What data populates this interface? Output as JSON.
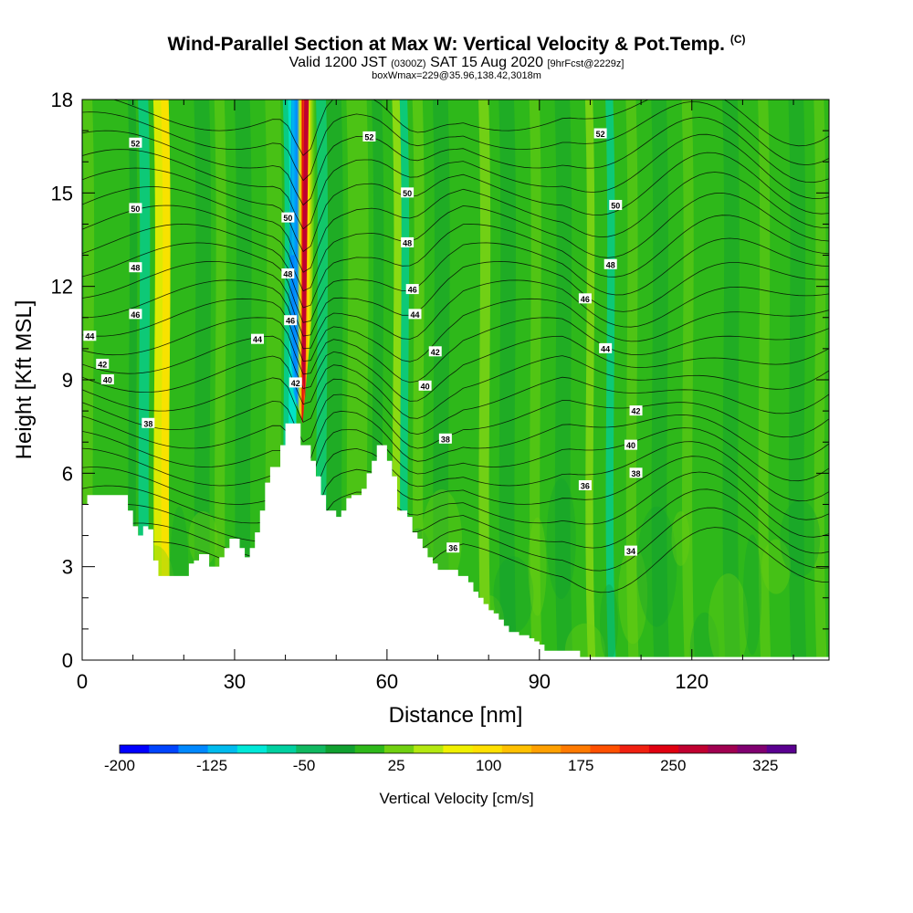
{
  "titles": {
    "main": "Wind-Parallel Section at Max W: Vertical Velocity & Pot.Temp.",
    "main_suffix": "(C)",
    "valid_a": "Valid 1200 JST",
    "valid_small1": "(0300Z)",
    "valid_b": "SAT 15 Aug 2020",
    "valid_small2": "[9hrFcst@2229z]",
    "subline": "boxWmax=229@35.96,138.42,3018m"
  },
  "chart_data": {
    "type": "heatmap",
    "xlabel": "Distance [nm]",
    "ylabel": "Height [Kft MSL]",
    "xlim": [
      0,
      147
    ],
    "ylim": [
      0,
      18
    ],
    "x_ticks": [
      0,
      30,
      60,
      90,
      120
    ],
    "y_ticks": [
      0,
      3,
      6,
      9,
      12,
      15,
      18
    ],
    "colorbar": {
      "label": "Vertical Velocity [cm/s]",
      "tick_labels": [
        -200,
        -125,
        -50,
        25,
        100,
        175,
        250,
        325
      ],
      "min": -200,
      "max": 350,
      "colors": [
        "#0000ff",
        "#0044ff",
        "#0088ff",
        "#00bbee",
        "#00e8d8",
        "#00d0a0",
        "#10b860",
        "#10a030",
        "#2eb81a",
        "#70d010",
        "#b4e810",
        "#f0f000",
        "#ffe000",
        "#ffc000",
        "#ffa000",
        "#ff7a00",
        "#ff5000",
        "#f02010",
        "#e00010",
        "#c00030",
        "#a00050",
        "#800070",
        "#5a0090"
      ]
    },
    "terrain_profile": {
      "x": [
        0,
        1,
        3.5,
        4,
        7,
        9,
        10,
        11,
        12,
        13,
        14,
        15,
        16,
        17,
        18,
        20,
        21,
        22,
        23,
        24,
        25,
        26,
        27,
        28,
        29,
        30,
        31,
        32,
        33,
        34,
        35,
        36,
        37,
        38,
        39,
        40,
        41,
        42,
        43,
        44,
        45,
        46,
        47,
        48,
        49,
        50,
        51,
        52,
        53,
        54,
        55,
        56,
        57,
        58,
        59,
        60,
        61,
        62,
        63,
        64,
        65,
        66,
        67,
        68,
        69,
        70,
        71,
        72,
        73,
        74,
        75,
        76,
        77,
        78,
        79,
        80,
        81,
        82,
        83,
        84,
        85,
        86,
        87,
        88,
        89,
        90,
        91,
        92,
        93,
        94,
        95,
        96,
        97,
        98,
        99,
        100,
        147
      ],
      "y": [
        5.0,
        5.3,
        5.3,
        5.3,
        5.3,
        4.8,
        4.3,
        4.0,
        4.3,
        4.2,
        3.2,
        2.7,
        2.7,
        2.7,
        2.7,
        2.7,
        3.1,
        3.2,
        3.4,
        3.4,
        3.0,
        3.0,
        3.3,
        3.6,
        3.9,
        3.9,
        3.6,
        3.3,
        3.6,
        4.1,
        4.8,
        5.7,
        6.2,
        6.2,
        6.9,
        7.6,
        7.6,
        7.6,
        6.9,
        6.9,
        6.4,
        5.9,
        5.3,
        4.8,
        4.8,
        4.6,
        4.8,
        5.2,
        5.3,
        5.3,
        5.5,
        6.0,
        6.4,
        6.9,
        6.9,
        6.4,
        5.9,
        4.8,
        4.8,
        4.6,
        4.1,
        3.9,
        3.6,
        3.3,
        3.1,
        2.9,
        2.9,
        2.9,
        2.9,
        2.7,
        2.7,
        2.5,
        2.2,
        2.0,
        1.8,
        1.6,
        1.5,
        1.3,
        1.1,
        0.9,
        0.9,
        0.8,
        0.8,
        0.7,
        0.6,
        0.5,
        0.3,
        0.3,
        0.3,
        0.3,
        0.3,
        0.3,
        0.3,
        0.1,
        0.1,
        0.1,
        0.1
      ],
      "color": "#ffffff"
    },
    "contour_labels": [
      {
        "text": "52",
        "x": 10.5,
        "y": 16.6
      },
      {
        "text": "50",
        "x": 10.5,
        "y": 14.5
      },
      {
        "text": "48",
        "x": 10.5,
        "y": 12.6
      },
      {
        "text": "46",
        "x": 10.5,
        "y": 11.1
      },
      {
        "text": "44",
        "x": 1.5,
        "y": 10.4
      },
      {
        "text": "42",
        "x": 4.0,
        "y": 9.5
      },
      {
        "text": "40",
        "x": 5.0,
        "y": 9.0
      },
      {
        "text": "38",
        "x": 13.0,
        "y": 7.6
      },
      {
        "text": "44",
        "x": 34.5,
        "y": 10.3
      },
      {
        "text": "50",
        "x": 40.5,
        "y": 14.2
      },
      {
        "text": "48",
        "x": 40.5,
        "y": 12.4
      },
      {
        "text": "46",
        "x": 41.0,
        "y": 10.9
      },
      {
        "text": "42",
        "x": 42.0,
        "y": 8.9
      },
      {
        "text": "52",
        "x": 56.5,
        "y": 16.8
      },
      {
        "text": "50",
        "x": 64.0,
        "y": 15.0
      },
      {
        "text": "48",
        "x": 64.0,
        "y": 13.4
      },
      {
        "text": "46",
        "x": 65.0,
        "y": 11.9
      },
      {
        "text": "44",
        "x": 65.5,
        "y": 11.1
      },
      {
        "text": "42",
        "x": 69.5,
        "y": 9.9
      },
      {
        "text": "40",
        "x": 67.5,
        "y": 8.8
      },
      {
        "text": "38",
        "x": 71.5,
        "y": 7.1
      },
      {
        "text": "36",
        "x": 73.0,
        "y": 3.6
      },
      {
        "text": "52",
        "x": 102.0,
        "y": 16.9
      },
      {
        "text": "50",
        "x": 105.0,
        "y": 14.6
      },
      {
        "text": "48",
        "x": 104.0,
        "y": 12.7
      },
      {
        "text": "46",
        "x": 99.0,
        "y": 11.6
      },
      {
        "text": "44",
        "x": 103.0,
        "y": 10.0
      },
      {
        "text": "42",
        "x": 109.0,
        "y": 8.0
      },
      {
        "text": "40",
        "x": 108.0,
        "y": 6.9
      },
      {
        "text": "38",
        "x": 109.0,
        "y": 6.0
      },
      {
        "text": "36",
        "x": 99.0,
        "y": 5.6
      },
      {
        "text": "34",
        "x": 108.0,
        "y": 3.5
      }
    ]
  }
}
